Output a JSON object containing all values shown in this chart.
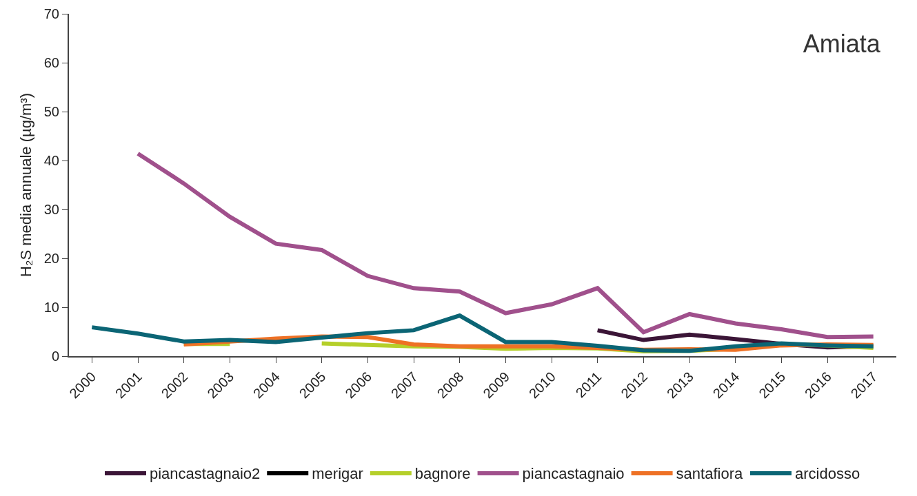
{
  "chart_data": {
    "type": "line",
    "title": "Amiata",
    "ylabel": "H₂S media annuale (µg/m³)",
    "categories": [
      "2000",
      "2001",
      "2002",
      "2003",
      "2004",
      "2005",
      "2006",
      "2007",
      "2008",
      "2009",
      "2010",
      "2011",
      "2012",
      "2013",
      "2014",
      "2015",
      "2016",
      "2017"
    ],
    "ylim": [
      0,
      70
    ],
    "yticks": [
      0,
      10,
      20,
      30,
      40,
      50,
      60,
      70
    ],
    "grid": false,
    "legend": "bottom",
    "marker": "none",
    "line_style": "solid",
    "series": [
      {
        "name": "piancastagnaio2",
        "color": "#3b1537",
        "values": [
          null,
          null,
          null,
          null,
          null,
          null,
          null,
          null,
          null,
          null,
          null,
          5.3,
          3.3,
          4.4,
          3.5,
          2.5,
          1.8,
          2.0
        ]
      },
      {
        "name": "merigar",
        "color": "#000000",
        "values": [
          null,
          null,
          null,
          null,
          null,
          null,
          null,
          null,
          null,
          null,
          null,
          null,
          null,
          null,
          null,
          null,
          null,
          null
        ]
      },
      {
        "name": "bagnore",
        "color": "#b5cf2a",
        "values": [
          null,
          null,
          2.5,
          2.5,
          null,
          2.6,
          2.3,
          2.0,
          1.9,
          1.5,
          1.7,
          1.6,
          1.0,
          1.1,
          1.5,
          2.5,
          2.2,
          1.7
        ]
      },
      {
        "name": "piancastagnaio",
        "color": "#a0508c",
        "values": [
          null,
          41.4,
          35.3,
          28.5,
          23.0,
          21.7,
          16.4,
          13.9,
          13.2,
          8.8,
          10.6,
          13.9,
          4.9,
          8.6,
          6.7,
          5.5,
          3.9,
          4.0
        ]
      },
      {
        "name": "santafiora",
        "color": "#ee7125",
        "values": [
          null,
          null,
          2.4,
          3.0,
          3.6,
          4.0,
          3.9,
          2.4,
          2.0,
          2.0,
          2.0,
          1.7,
          1.3,
          1.4,
          1.3,
          2.2,
          2.4,
          2.3
        ]
      },
      {
        "name": "arcidosso",
        "color": "#0b6575",
        "values": [
          5.9,
          4.6,
          3.0,
          3.3,
          2.9,
          3.8,
          4.7,
          5.3,
          8.3,
          2.9,
          2.9,
          2.1,
          1.2,
          1.1,
          2.0,
          2.6,
          2.2,
          2.0
        ]
      }
    ]
  }
}
